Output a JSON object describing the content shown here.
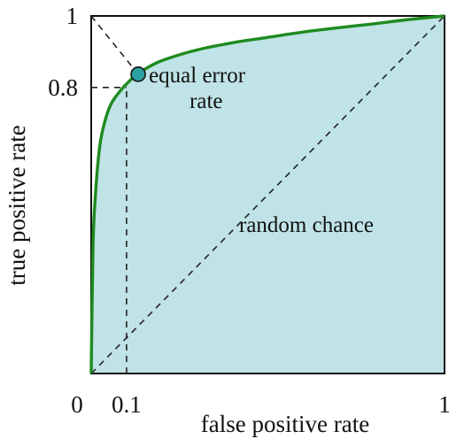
{
  "chart_data": {
    "type": "line",
    "title": "",
    "xlabel": "false positive rate",
    "ylabel": "true positive rate",
    "xlim": [
      0,
      1
    ],
    "ylim": [
      0,
      1
    ],
    "x_ticks": [
      {
        "value": 0,
        "label": "0"
      },
      {
        "value": 0.1,
        "label": "0.1"
      },
      {
        "value": 1,
        "label": "1"
      }
    ],
    "y_ticks": [
      {
        "value": 0.8,
        "label": "0.8"
      },
      {
        "value": 1,
        "label": "1"
      }
    ],
    "series": [
      {
        "type": "line",
        "color": "#1e8a1e",
        "fill": "#bfe3e6",
        "x": [
          0,
          0.005,
          0.01,
          0.02,
          0.03,
          0.05,
          0.07,
          0.1,
          0.13,
          0.15,
          0.2,
          0.3,
          0.4,
          0.5,
          0.6,
          0.7,
          0.8,
          0.9,
          1.0
        ],
        "y": [
          0,
          0.35,
          0.47,
          0.6,
          0.67,
          0.74,
          0.775,
          0.81,
          0.837,
          0.85,
          0.875,
          0.905,
          0.925,
          0.94,
          0.955,
          0.967,
          0.978,
          0.99,
          1.0
        ]
      },
      {
        "type": "line",
        "style": "dashed",
        "color": "#222222",
        "x": [
          0,
          1
        ],
        "y": [
          0,
          1
        ]
      }
    ],
    "points": [
      {
        "x": 0.133,
        "y": 0.837,
        "color": "#2aa1a0"
      }
    ],
    "reference_lines": [
      {
        "style": "dashed",
        "x": [
          0.1,
          0.1
        ],
        "y": [
          0,
          0.8
        ]
      },
      {
        "style": "dashed",
        "x": [
          0,
          0.1
        ],
        "y": [
          0.8,
          0.8
        ]
      },
      {
        "style": "dashed",
        "x": [
          0,
          0.133
        ],
        "y": [
          1,
          0.837
        ]
      }
    ],
    "annotations": {
      "equal_error_line1": "equal error",
      "equal_error_line2": "rate",
      "random_chance": "random chance"
    },
    "grid": false,
    "legend": "none"
  }
}
